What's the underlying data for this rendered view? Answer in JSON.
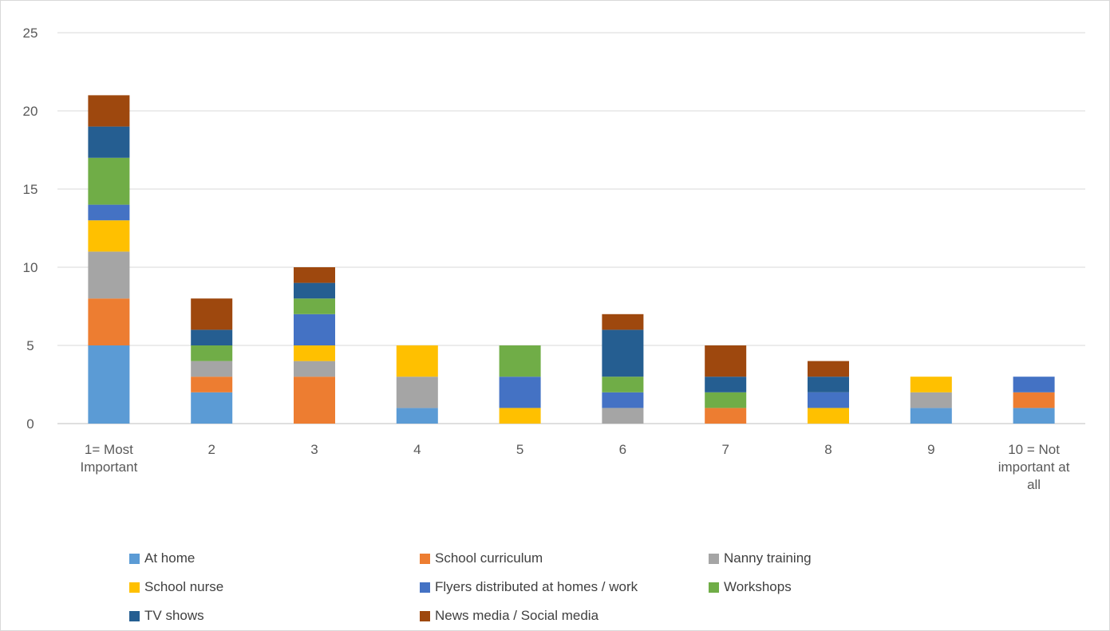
{
  "chart_data": {
    "type": "bar",
    "stacked": true,
    "title": "",
    "xlabel": "",
    "ylabel": "",
    "ylim": [
      0,
      25
    ],
    "yticks": [
      0,
      5,
      10,
      15,
      20,
      25
    ],
    "grid": true,
    "legend_position": "bottom",
    "categories": [
      "1= Most Important",
      "2",
      "3",
      "4",
      "5",
      "6",
      "7",
      "8",
      "9",
      "10 = Not important at all"
    ],
    "category_lines": [
      [
        "1= Most",
        "Important"
      ],
      [
        "2"
      ],
      [
        "3"
      ],
      [
        "4"
      ],
      [
        "5"
      ],
      [
        "6"
      ],
      [
        "7"
      ],
      [
        "8"
      ],
      [
        "9"
      ],
      [
        "10 = Not",
        "important at",
        "all"
      ]
    ],
    "series": [
      {
        "name": "At home",
        "color": "#5B9BD5",
        "values": [
          5,
          2,
          0,
          1,
          0,
          0,
          0,
          0,
          1,
          1
        ]
      },
      {
        "name": "School curriculum",
        "color": "#ED7D31",
        "values": [
          3,
          1,
          3,
          0,
          0,
          0,
          1,
          0,
          0,
          1
        ]
      },
      {
        "name": "Nanny training",
        "color": "#A5A5A5",
        "values": [
          3,
          1,
          1,
          2,
          0,
          1,
          0,
          0,
          1,
          0
        ]
      },
      {
        "name": "School nurse",
        "color": "#FFC000",
        "values": [
          2,
          0,
          1,
          2,
          1,
          0,
          0,
          1,
          1,
          0
        ]
      },
      {
        "name": "Flyers distributed at homes / work",
        "color": "#4472C4",
        "values": [
          1,
          0,
          2,
          0,
          2,
          1,
          0,
          1,
          0,
          1
        ]
      },
      {
        "name": "Workshops",
        "color": "#70AD47",
        "values": [
          3,
          1,
          1,
          0,
          2,
          1,
          1,
          0,
          0,
          0
        ]
      },
      {
        "name": "TV shows",
        "color": "#255E91",
        "values": [
          2,
          1,
          1,
          0,
          0,
          3,
          1,
          1,
          0,
          0
        ]
      },
      {
        "name": "News media / Social media",
        "color": "#9E480E",
        "values": [
          2,
          2,
          1,
          0,
          0,
          1,
          2,
          1,
          0,
          0
        ]
      }
    ]
  }
}
